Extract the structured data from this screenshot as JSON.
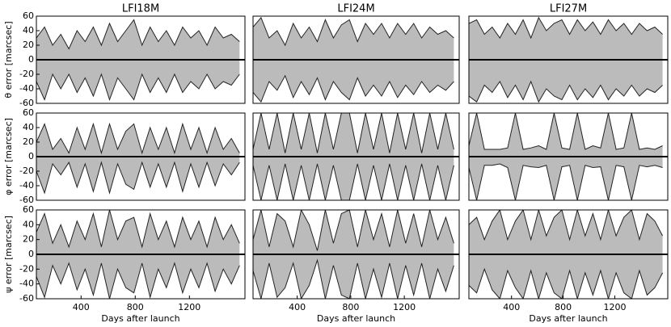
{
  "chart_data": [
    {
      "type": "area",
      "title": "LFI18M",
      "ylabel": "θ error [marcsec]",
      "xlim": [
        70,
        1610
      ],
      "ylim": [
        -60,
        60
      ],
      "yticks": [
        -60,
        -40,
        -20,
        0,
        20,
        40,
        60
      ],
      "x": [
        70,
        130,
        190,
        250,
        310,
        370,
        430,
        490,
        550,
        610,
        670,
        730,
        790,
        850,
        910,
        970,
        1030,
        1090,
        1150,
        1210,
        1270,
        1330,
        1390,
        1450,
        1510,
        1570
      ],
      "series": [
        {
          "color": "#bbbbbb",
          "values": [
            30,
            45,
            20,
            35,
            15,
            40,
            25,
            45,
            20,
            50,
            25,
            40,
            55,
            20,
            45,
            25,
            40,
            20,
            45,
            30,
            40,
            20,
            45,
            30,
            35,
            25
          ]
        },
        {
          "color": "#bbbbbb",
          "values": [
            -30,
            -55,
            -20,
            -40,
            -20,
            -45,
            -25,
            -50,
            -20,
            -55,
            -25,
            -40,
            -55,
            -20,
            -45,
            -25,
            -45,
            -20,
            -45,
            -30,
            -40,
            -20,
            -40,
            -30,
            -35,
            -20
          ]
        }
      ]
    },
    {
      "type": "area",
      "title": "LFI24M",
      "xlim": [
        70,
        1610
      ],
      "ylim": [
        -60,
        60
      ],
      "x": [
        70,
        130,
        190,
        250,
        310,
        370,
        430,
        490,
        550,
        610,
        670,
        730,
        790,
        850,
        910,
        970,
        1030,
        1090,
        1150,
        1210,
        1270,
        1330,
        1390,
        1450,
        1510,
        1570
      ],
      "series": [
        {
          "color": "#bbbbbb",
          "values": [
            45,
            58,
            30,
            40,
            20,
            50,
            30,
            45,
            25,
            55,
            30,
            48,
            55,
            25,
            50,
            35,
            50,
            30,
            50,
            35,
            50,
            30,
            45,
            35,
            40,
            30
          ]
        },
        {
          "color": "#bbbbbb",
          "values": [
            -45,
            -58,
            -30,
            -42,
            -22,
            -52,
            -30,
            -48,
            -25,
            -55,
            -30,
            -45,
            -55,
            -25,
            -50,
            -35,
            -50,
            -30,
            -52,
            -35,
            -48,
            -30,
            -45,
            -35,
            -42,
            -30
          ]
        }
      ]
    },
    {
      "type": "area",
      "title": "LFI27M",
      "xlim": [
        70,
        1610
      ],
      "ylim": [
        -60,
        60
      ],
      "x": [
        70,
        130,
        190,
        250,
        310,
        370,
        430,
        490,
        550,
        610,
        670,
        730,
        790,
        850,
        910,
        970,
        1030,
        1090,
        1150,
        1210,
        1270,
        1330,
        1390,
        1450,
        1510,
        1570
      ],
      "series": [
        {
          "color": "#bbbbbb",
          "values": [
            50,
            55,
            35,
            45,
            30,
            50,
            35,
            55,
            30,
            58,
            40,
            50,
            55,
            35,
            55,
            40,
            52,
            35,
            55,
            40,
            50,
            35,
            50,
            40,
            45,
            35
          ]
        },
        {
          "color": "#bbbbbb",
          "values": [
            -50,
            -58,
            -35,
            -45,
            -30,
            -52,
            -35,
            -55,
            -30,
            -58,
            -40,
            -50,
            -55,
            -35,
            -55,
            -40,
            -52,
            -35,
            -55,
            -40,
            -50,
            -35,
            -50,
            -40,
            -45,
            -35
          ]
        }
      ]
    },
    {
      "type": "area",
      "ylabel": "φ error [marcsec]",
      "xlim": [
        70,
        1610
      ],
      "ylim": [
        -60,
        60
      ],
      "yticks": [
        -60,
        -40,
        -20,
        0,
        20,
        40,
        60
      ],
      "x": [
        70,
        130,
        190,
        250,
        310,
        370,
        430,
        490,
        550,
        610,
        670,
        730,
        790,
        850,
        910,
        970,
        1030,
        1090,
        1150,
        1210,
        1270,
        1330,
        1390,
        1450,
        1510,
        1570
      ],
      "series": [
        {
          "color": "#bbbbbb",
          "values": [
            20,
            45,
            10,
            25,
            5,
            40,
            10,
            45,
            5,
            45,
            10,
            35,
            45,
            5,
            40,
            10,
            40,
            5,
            45,
            10,
            40,
            5,
            40,
            10,
            25,
            5
          ]
        },
        {
          "color": "#bbbbbb",
          "values": [
            -20,
            -50,
            -10,
            -25,
            -8,
            -42,
            -10,
            -48,
            -8,
            -50,
            -10,
            -38,
            -45,
            -8,
            -42,
            -10,
            -42,
            -8,
            -48,
            -10,
            -42,
            -8,
            -40,
            -10,
            -25,
            -8
          ]
        }
      ]
    },
    {
      "type": "area",
      "xlim": [
        70,
        1610
      ],
      "ylim": [
        -60,
        60
      ],
      "x": [
        70,
        130,
        190,
        250,
        310,
        370,
        430,
        490,
        550,
        610,
        670,
        730,
        790,
        850,
        910,
        970,
        1030,
        1090,
        1150,
        1210,
        1270,
        1330,
        1390,
        1450,
        1510,
        1570
      ],
      "series": [
        {
          "color": "#bbbbbb",
          "values": [
            10,
            60,
            10,
            60,
            5,
            60,
            10,
            60,
            5,
            60,
            10,
            60,
            60,
            5,
            60,
            10,
            60,
            5,
            60,
            10,
            60,
            5,
            60,
            10,
            60,
            10
          ]
        },
        {
          "color": "#bbbbbb",
          "values": [
            -12,
            -60,
            -12,
            -60,
            -10,
            -60,
            -12,
            -60,
            -10,
            -60,
            -12,
            -60,
            -60,
            -10,
            -60,
            -12,
            -60,
            -10,
            -60,
            -12,
            -60,
            -10,
            -60,
            -12,
            -60,
            -12
          ]
        }
      ]
    },
    {
      "type": "area",
      "xlim": [
        70,
        1610
      ],
      "ylim": [
        -60,
        60
      ],
      "x": [
        70,
        130,
        190,
        250,
        310,
        370,
        430,
        490,
        550,
        610,
        670,
        730,
        790,
        850,
        910,
        970,
        1030,
        1090,
        1150,
        1210,
        1270,
        1330,
        1390,
        1450,
        1510,
        1570
      ],
      "series": [
        {
          "color": "#bbbbbb",
          "values": [
            15,
            60,
            10,
            10,
            10,
            12,
            60,
            10,
            12,
            15,
            10,
            60,
            12,
            10,
            60,
            10,
            15,
            12,
            60,
            10,
            12,
            60,
            10,
            12,
            10,
            15
          ]
        },
        {
          "color": "#bbbbbb",
          "values": [
            -15,
            -60,
            -12,
            -12,
            -10,
            -15,
            -60,
            -12,
            -14,
            -15,
            -12,
            -60,
            -14,
            -12,
            -60,
            -12,
            -15,
            -14,
            -60,
            -12,
            -14,
            -60,
            -12,
            -14,
            -12,
            -15
          ]
        }
      ]
    },
    {
      "type": "area",
      "ylabel": "ψ error [marcsec]",
      "xlabel": "Days after launch",
      "xlim": [
        70,
        1610
      ],
      "ylim": [
        -60,
        60
      ],
      "xticks": [
        400,
        800,
        1200
      ],
      "yticks": [
        -60,
        -40,
        -20,
        0,
        20,
        40,
        60
      ],
      "x": [
        70,
        130,
        190,
        250,
        310,
        370,
        430,
        490,
        550,
        610,
        670,
        730,
        790,
        850,
        910,
        970,
        1030,
        1090,
        1150,
        1210,
        1270,
        1330,
        1390,
        1450,
        1510,
        1570
      ],
      "series": [
        {
          "color": "#bbbbbb",
          "values": [
            30,
            55,
            15,
            40,
            10,
            45,
            20,
            55,
            10,
            60,
            20,
            45,
            50,
            10,
            55,
            20,
            45,
            10,
            50,
            20,
            45,
            10,
            50,
            20,
            40,
            15
          ]
        },
        {
          "color": "#bbbbbb",
          "values": [
            -30,
            -58,
            -15,
            -40,
            -12,
            -48,
            -20,
            -55,
            -12,
            -60,
            -20,
            -45,
            -52,
            -12,
            -58,
            -20,
            -45,
            -12,
            -52,
            -20,
            -45,
            -12,
            -50,
            -20,
            -40,
            -15
          ]
        }
      ]
    },
    {
      "type": "area",
      "xlabel": "Days after launch",
      "xlim": [
        70,
        1610
      ],
      "ylim": [
        -60,
        60
      ],
      "xticks": [
        400,
        800,
        1200
      ],
      "x": [
        70,
        130,
        190,
        250,
        310,
        370,
        430,
        490,
        550,
        610,
        670,
        730,
        790,
        850,
        910,
        970,
        1030,
        1090,
        1150,
        1210,
        1270,
        1330,
        1390,
        1450,
        1510,
        1570
      ],
      "series": [
        {
          "color": "#bbbbbb",
          "values": [
            20,
            60,
            10,
            55,
            45,
            10,
            60,
            40,
            5,
            60,
            15,
            55,
            60,
            10,
            60,
            20,
            55,
            10,
            60,
            15,
            55,
            10,
            60,
            20,
            50,
            15
          ]
        },
        {
          "color": "#bbbbbb",
          "values": [
            -22,
            -60,
            -12,
            -58,
            -45,
            -12,
            -60,
            -42,
            -8,
            -60,
            -15,
            -55,
            -60,
            -12,
            -60,
            -20,
            -58,
            -12,
            -60,
            -15,
            -55,
            -12,
            -60,
            -20,
            -50,
            -15
          ]
        }
      ]
    },
    {
      "type": "area",
      "xlabel": "Days after launch",
      "xlim": [
        70,
        1610
      ],
      "ylim": [
        -60,
        60
      ],
      "xticks": [
        400,
        800,
        1200
      ],
      "x": [
        70,
        130,
        190,
        250,
        310,
        370,
        430,
        490,
        550,
        610,
        670,
        730,
        790,
        850,
        910,
        970,
        1030,
        1090,
        1150,
        1210,
        1270,
        1330,
        1390,
        1450,
        1510,
        1570
      ],
      "series": [
        {
          "color": "#bbbbbb",
          "values": [
            40,
            50,
            20,
            45,
            60,
            20,
            45,
            60,
            20,
            60,
            25,
            50,
            60,
            20,
            60,
            25,
            55,
            20,
            60,
            25,
            50,
            60,
            20,
            55,
            45,
            25
          ]
        },
        {
          "color": "#bbbbbb",
          "values": [
            -42,
            -52,
            -20,
            -48,
            -60,
            -22,
            -45,
            -60,
            -22,
            -60,
            -25,
            -52,
            -60,
            -22,
            -60,
            -25,
            -55,
            -22,
            -60,
            -25,
            -52,
            -60,
            -22,
            -55,
            -45,
            -25
          ]
        }
      ]
    }
  ]
}
